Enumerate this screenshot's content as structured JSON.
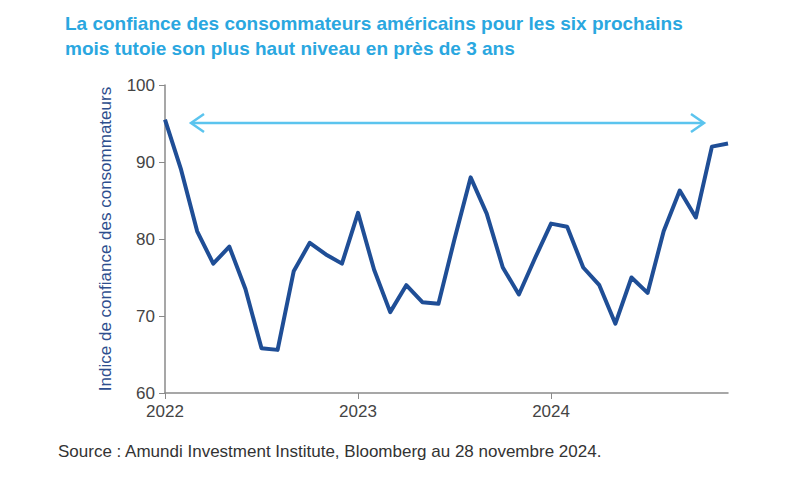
{
  "chart_data": {
    "type": "line",
    "title": "La confiance des consommateurs américains pour les six prochains mois tutoie son plus haut niveau en près de 3 ans",
    "y_label": "Indice de confiance des consommateurs",
    "source": "Source : Amundi Investment Institute, Bloomberg au 28 novembre 2024.",
    "categories": [
      "2022",
      null,
      null,
      null,
      null,
      null,
      null,
      null,
      null,
      null,
      null,
      null,
      "2023",
      null,
      null,
      null,
      null,
      null,
      null,
      null,
      null,
      null,
      null,
      null,
      "2024",
      null,
      null,
      null,
      null,
      null,
      null,
      null,
      null,
      null,
      null,
      null
    ],
    "values": [
      95.5,
      89.0,
      81.0,
      76.8,
      79.0,
      73.5,
      65.8,
      65.6,
      75.8,
      79.5,
      78.0,
      76.8,
      83.4,
      76.0,
      70.5,
      74.0,
      71.8,
      71.6,
      80.0,
      88.0,
      83.3,
      76.3,
      72.8,
      77.5,
      82.0,
      81.6,
      76.3,
      74.0,
      69.0,
      75.0,
      73.0,
      81.0,
      86.3,
      82.8,
      92.0,
      92.4
    ],
    "color": "#1f4e96",
    "ylim": [
      60,
      100
    ],
    "yticks": [
      60,
      70,
      80,
      90,
      100
    ],
    "grid": false
  }
}
